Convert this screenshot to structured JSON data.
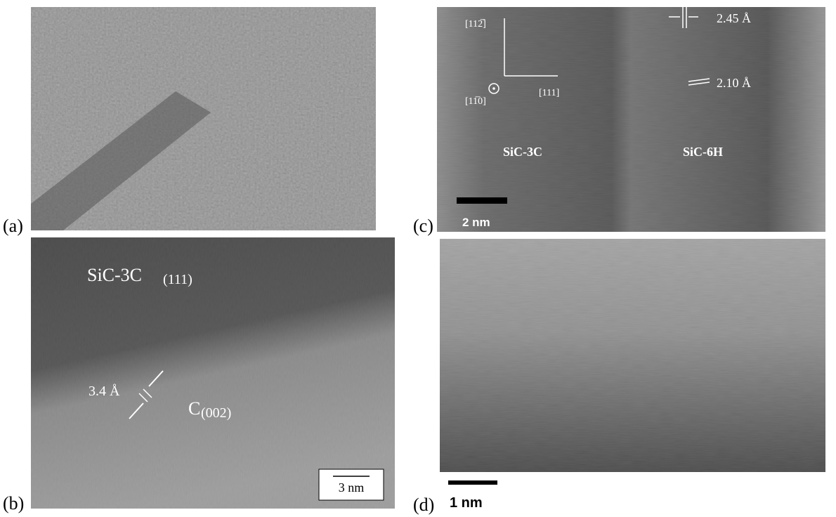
{
  "panels": [
    {
      "label": "(a)"
    },
    {
      "label": "(b)",
      "phase": "SiC-3C",
      "phase_plane": "(111)",
      "spacing": "3.4 Å",
      "layer": "C",
      "layer_plane": "(002)",
      "scale_bar": "3 nm"
    },
    {
      "label": "(c)",
      "direction_up": "[112̅]",
      "direction_out": "[11̅0]",
      "direction_right": "[111]",
      "spacing_1": "2.45 Å",
      "spacing_2": "2.10 Å",
      "phase_left": "SiC-3C",
      "phase_right": "SiC-6H",
      "scale_bar": "2 nm"
    },
    {
      "label": "(d)",
      "scale_bar": "1 nm"
    }
  ]
}
